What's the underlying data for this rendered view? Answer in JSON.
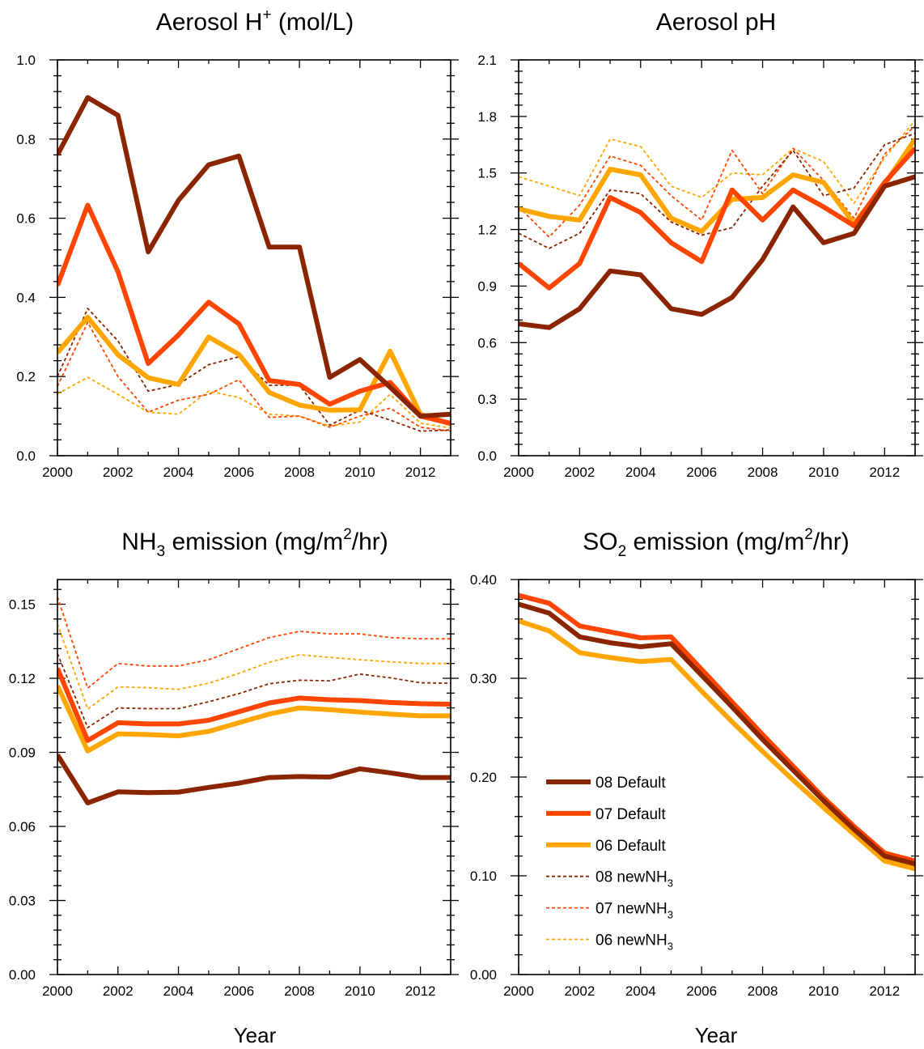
{
  "chart_data": [
    {
      "type": "line",
      "title": "Aerosol H⁺ (mol/L)",
      "xlabel": "",
      "x": [
        2000,
        2001,
        2002,
        2003,
        2004,
        2005,
        2006,
        2007,
        2008,
        2009,
        2010,
        2011,
        2012,
        2013
      ],
      "xlim": [
        2000,
        2013
      ],
      "xticks": [
        "2000",
        "2002",
        "2004",
        "2006",
        "2008",
        "2010",
        "2012"
      ],
      "ylim": [
        0,
        1.0
      ],
      "yticks": [
        "0.0",
        "0.2",
        "0.4",
        "0.6",
        "0.8",
        "1.0"
      ],
      "series": [
        {
          "name": "08 Default",
          "style": "solid",
          "values": [
            0.76,
            0.905,
            0.86,
            0.515,
            0.645,
            0.735,
            0.757,
            0.527,
            0.527,
            0.198,
            0.243,
            0.173,
            0.1,
            0.105
          ]
        },
        {
          "name": "07 Default",
          "style": "solid",
          "values": [
            0.43,
            0.633,
            0.465,
            0.233,
            0.305,
            0.388,
            0.333,
            0.19,
            0.18,
            0.13,
            0.163,
            0.185,
            0.1,
            0.082
          ]
        },
        {
          "name": "06 Default",
          "style": "solid",
          "values": [
            0.26,
            0.35,
            0.255,
            0.197,
            0.18,
            0.3,
            0.256,
            0.16,
            0.128,
            0.115,
            0.116,
            0.264,
            0.105,
            0.08
          ]
        },
        {
          "name": "08 newNH3",
          "style": "dash",
          "values": [
            0.2,
            0.372,
            0.29,
            0.163,
            0.18,
            0.23,
            0.25,
            0.178,
            0.178,
            0.077,
            0.115,
            0.09,
            0.062,
            0.065
          ]
        },
        {
          "name": "07 newNH3",
          "style": "dash",
          "values": [
            0.175,
            0.337,
            0.2,
            0.11,
            0.14,
            0.155,
            0.192,
            0.097,
            0.1,
            0.072,
            0.1,
            0.12,
            0.072,
            0.062
          ]
        },
        {
          "name": "06 newNH3",
          "style": "dash",
          "values": [
            0.156,
            0.198,
            0.155,
            0.11,
            0.105,
            0.163,
            0.147,
            0.105,
            0.1,
            0.075,
            0.085,
            0.155,
            0.082,
            0.07
          ]
        }
      ]
    },
    {
      "type": "line",
      "title": "Aerosol pH",
      "xlabel": "",
      "x": [
        2000,
        2001,
        2002,
        2003,
        2004,
        2005,
        2006,
        2007,
        2008,
        2009,
        2010,
        2011,
        2012,
        2013
      ],
      "xlim": [
        2000,
        2013
      ],
      "xticks": [
        "2000",
        "2002",
        "2004",
        "2006",
        "2008",
        "2010",
        "2012"
      ],
      "ylim": [
        0,
        2.1
      ],
      "yticks": [
        "0.0",
        "0.3",
        "0.6",
        "0.9",
        "1.2",
        "1.5",
        "1.8",
        "2.1"
      ],
      "series": [
        {
          "name": "08 Default",
          "style": "solid",
          "values": [
            0.7,
            0.68,
            0.78,
            0.98,
            0.96,
            0.78,
            0.75,
            0.84,
            1.04,
            1.32,
            1.13,
            1.18,
            1.43,
            1.48
          ]
        },
        {
          "name": "07 Default",
          "style": "solid",
          "values": [
            1.02,
            0.89,
            1.02,
            1.37,
            1.29,
            1.13,
            1.03,
            1.41,
            1.25,
            1.41,
            1.32,
            1.22,
            1.45,
            1.63
          ]
        },
        {
          "name": "06 Default",
          "style": "solid",
          "values": [
            1.31,
            1.27,
            1.25,
            1.52,
            1.49,
            1.26,
            1.19,
            1.36,
            1.37,
            1.49,
            1.45,
            1.23,
            1.44,
            1.68
          ]
        },
        {
          "name": "08 newNH3",
          "style": "dash",
          "values": [
            1.18,
            1.1,
            1.18,
            1.41,
            1.39,
            1.24,
            1.17,
            1.21,
            1.43,
            1.62,
            1.38,
            1.42,
            1.65,
            1.71
          ]
        },
        {
          "name": "07 newNH3",
          "style": "dash",
          "values": [
            1.32,
            1.16,
            1.33,
            1.59,
            1.54,
            1.38,
            1.25,
            1.62,
            1.39,
            1.63,
            1.46,
            1.26,
            1.6,
            1.75
          ]
        },
        {
          "name": "06 newNH3",
          "style": "dash",
          "values": [
            1.48,
            1.43,
            1.38,
            1.68,
            1.64,
            1.43,
            1.37,
            1.5,
            1.49,
            1.63,
            1.56,
            1.34,
            1.58,
            1.78
          ]
        }
      ]
    },
    {
      "type": "line",
      "title": "NH₃ emission (mg/m²/hr)",
      "xlabel": "Year",
      "x": [
        2000,
        2001,
        2002,
        2003,
        2004,
        2005,
        2006,
        2007,
        2008,
        2009,
        2010,
        2011,
        2012,
        2013
      ],
      "xlim": [
        2000,
        2013
      ],
      "xticks": [
        "2000",
        "2002",
        "2004",
        "2006",
        "2008",
        "2010",
        "2012"
      ],
      "ylim": [
        0,
        0.16
      ],
      "yticks": [
        "0.00",
        "0.03",
        "0.06",
        "0.09",
        "0.12",
        "0.15"
      ],
      "series": [
        {
          "name": "08 Default",
          "style": "solid",
          "values": [
            0.089,
            0.0695,
            0.074,
            0.0737,
            0.0739,
            0.0758,
            0.0775,
            0.0798,
            0.0802,
            0.08,
            0.0833,
            0.0817,
            0.0798,
            0.0798
          ]
        },
        {
          "name": "07 Default",
          "style": "solid",
          "values": [
            0.124,
            0.0948,
            0.102,
            0.1015,
            0.1015,
            0.103,
            0.1065,
            0.11,
            0.112,
            0.1113,
            0.111,
            0.1102,
            0.1097,
            0.1095
          ]
        },
        {
          "name": "06 Default",
          "style": "solid",
          "values": [
            0.117,
            0.0906,
            0.0975,
            0.0972,
            0.0967,
            0.0985,
            0.102,
            0.1055,
            0.108,
            0.1073,
            0.1063,
            0.1055,
            0.1048,
            0.1048
          ]
        },
        {
          "name": "08 newNH3",
          "style": "dash",
          "values": [
            0.13,
            0.1,
            0.108,
            0.1077,
            0.1077,
            0.1105,
            0.1138,
            0.1178,
            0.1192,
            0.119,
            0.1217,
            0.1202,
            0.1182,
            0.118
          ]
        },
        {
          "name": "07 newNH3",
          "style": "dash",
          "values": [
            0.153,
            0.116,
            0.126,
            0.125,
            0.125,
            0.1275,
            0.132,
            0.1365,
            0.139,
            0.138,
            0.138,
            0.1365,
            0.136,
            0.136
          ]
        },
        {
          "name": "06 newNH3",
          "style": "dash",
          "values": [
            0.142,
            0.1075,
            0.1165,
            0.1162,
            0.1155,
            0.118,
            0.122,
            0.1265,
            0.1295,
            0.1285,
            0.1275,
            0.1267,
            0.126,
            0.126
          ]
        }
      ]
    },
    {
      "type": "line",
      "title": "SO₂ emission (mg/m²/hr)",
      "xlabel": "Year",
      "x": [
        2000,
        2001,
        2002,
        2003,
        2004,
        2005,
        2006,
        2007,
        2008,
        2009,
        2010,
        2011,
        2012,
        2013
      ],
      "xlim": [
        2000,
        2013
      ],
      "xticks": [
        "2000",
        "2002",
        "2004",
        "2006",
        "2008",
        "2010",
        "2012"
      ],
      "ylim": [
        0,
        0.4
      ],
      "yticks": [
        "0.00",
        "0.10",
        "0.20",
        "0.30",
        "0.40"
      ],
      "legend_position": "lower-left",
      "series": [
        {
          "name": "08 Default",
          "style": "solid",
          "values": [
            0.375,
            0.366,
            0.342,
            0.336,
            0.332,
            0.335,
            0.303,
            0.271,
            0.238,
            0.207,
            0.176,
            0.147,
            0.12,
            0.112
          ]
        },
        {
          "name": "07 Default",
          "style": "solid",
          "values": [
            0.384,
            0.376,
            0.353,
            0.347,
            0.341,
            0.342,
            0.309,
            0.276,
            0.243,
            0.211,
            0.179,
            0.15,
            0.123,
            0.115
          ]
        },
        {
          "name": "06 Default",
          "style": "solid",
          "values": [
            0.358,
            0.348,
            0.326,
            0.321,
            0.317,
            0.319,
            0.287,
            0.256,
            0.226,
            0.197,
            0.169,
            0.142,
            0.115,
            0.107
          ]
        }
      ]
    }
  ],
  "legend": {
    "items": [
      {
        "label": "08 Default",
        "sub": "",
        "color": "#8B2500",
        "style": "solid"
      },
      {
        "label": "07 Default",
        "sub": "",
        "color": "#FF4500",
        "style": "solid"
      },
      {
        "label": "06 Default",
        "sub": "",
        "color": "#FFA500",
        "style": "solid"
      },
      {
        "label": "08 newNH",
        "sub": "3",
        "color": "#8B2500",
        "style": "dash"
      },
      {
        "label": "07 newNH",
        "sub": "3",
        "color": "#FF4500",
        "style": "dash"
      },
      {
        "label": "06 newNH",
        "sub": "3",
        "color": "#FFA500",
        "style": "dash"
      }
    ]
  },
  "colors": {
    "08": "#8B2500",
    "07": "#FF4500",
    "06": "#FFA500"
  }
}
